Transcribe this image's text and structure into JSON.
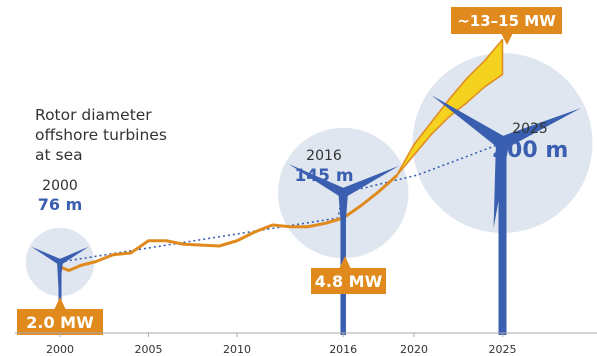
{
  "chart_data": {
    "type": "line",
    "title": "",
    "annotation": {
      "lines": [
        "Rotor diameter",
        "offshore turbines",
        "at sea"
      ]
    },
    "x_ticks": [
      "2000",
      "2005",
      "2010",
      "2016",
      "2020",
      "2025"
    ],
    "xlim": [
      1999,
      2029
    ],
    "ylim_mw": [
      0,
      17
    ],
    "series": [
      {
        "values": [
          {
            "x": 2000,
            "y": 2.0
          },
          {
            "x": 2000.5,
            "y": 1.8
          },
          {
            "x": 2001.2,
            "y": 2.1
          },
          {
            "x": 2002,
            "y": 2.3
          },
          {
            "x": 2003,
            "y": 2.7
          },
          {
            "x": 2004,
            "y": 2.8
          },
          {
            "x": 2005,
            "y": 3.5
          },
          {
            "x": 2006,
            "y": 3.5
          },
          {
            "x": 2007,
            "y": 3.3
          },
          {
            "x": 2009,
            "y": 3.2
          },
          {
            "x": 2010,
            "y": 3.5
          },
          {
            "x": 2011,
            "y": 4.0
          },
          {
            "x": 2012,
            "y": 4.4
          },
          {
            "x": 2013,
            "y": 4.3
          },
          {
            "x": 2014,
            "y": 4.3
          },
          {
            "x": 2015,
            "y": 4.5
          },
          {
            "x": 2016,
            "y": 4.8
          },
          {
            "x": 2017,
            "y": 5.5
          },
          {
            "x": 2018,
            "y": 6.3
          },
          {
            "x": 2019,
            "y": 7.2
          }
        ]
      }
    ],
    "projection_band": {
      "lower": [
        {
          "x": 2019,
          "y": 7.2
        },
        {
          "x": 2020,
          "y": 8.4
        },
        {
          "x": 2021,
          "y": 9.6
        },
        {
          "x": 2022,
          "y": 10.6
        },
        {
          "x": 2023,
          "y": 11.4
        },
        {
          "x": 2024,
          "y": 12.3
        },
        {
          "x": 2025,
          "y": 13.0
        }
      ],
      "upper": [
        {
          "x": 2019,
          "y": 7.2
        },
        {
          "x": 2020,
          "y": 9.0
        },
        {
          "x": 2021,
          "y": 10.3
        },
        {
          "x": 2022,
          "y": 11.6
        },
        {
          "x": 2023,
          "y": 12.8
        },
        {
          "x": 2024,
          "y": 13.8
        },
        {
          "x": 2025,
          "y": 15.0
        }
      ],
      "fill": "#f5d21f",
      "stroke": "#e08a1e"
    },
    "turbines": [
      {
        "year": 2000,
        "year_label": "2000",
        "diameter_label": "76 m",
        "diameter_m": 76,
        "power_label": "2.0 MW",
        "power_mw": 2.0
      },
      {
        "year": 2016,
        "year_label": "2016",
        "diameter_label": "145 m",
        "diameter_m": 145,
        "power_label": "4.8 MW",
        "power_mw": 4.8
      },
      {
        "year": 2025,
        "year_label": "2025",
        "diameter_label": "200 m",
        "diameter_m": 200,
        "power_label": "~13–15 MW",
        "power_mw": [
          13,
          15
        ]
      }
    ],
    "colors": {
      "line": "#e08a1e",
      "label_box": "#e08a1e",
      "turbine": "#3a5fb0",
      "circle": "#dfe6ef",
      "dotted": "#3a5fb0",
      "diameter_text": "#3a5fb0",
      "label_text": "#ffffff",
      "text": "#333333"
    }
  }
}
